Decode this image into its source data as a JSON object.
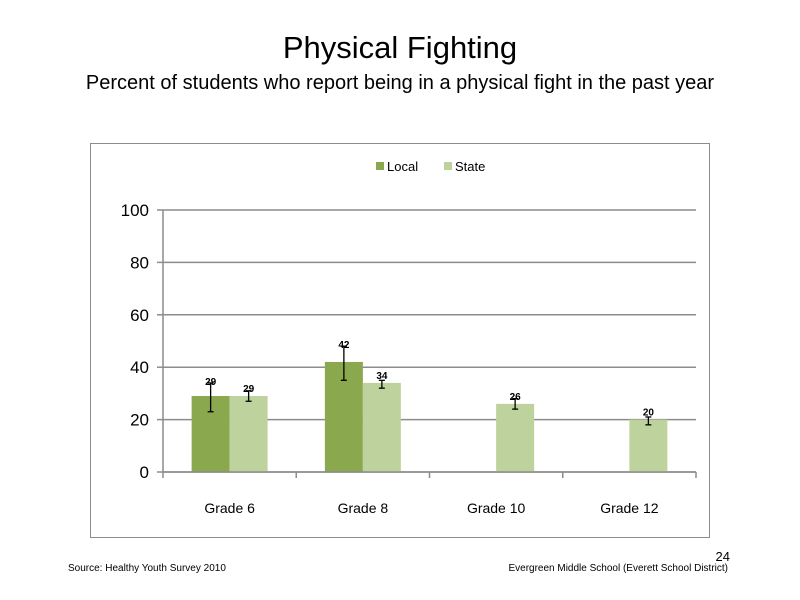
{
  "slide": {
    "title": "Physical Fighting",
    "subtitle": "Percent of students who report being in a physical fight in the past year",
    "source": "Source: Healthy Youth Survey 2010",
    "school": "Evergreen Middle  School (Everett School District)",
    "page_number": "24"
  },
  "colors": {
    "local": "#8aa84e",
    "state": "#bdd29c",
    "grid": "#8c8c8c"
  },
  "chart_data": {
    "type": "bar",
    "title": "",
    "xlabel": "",
    "ylabel": "",
    "categories": [
      "Grade 6",
      "Grade 8",
      "Grade 10",
      "Grade 12"
    ],
    "ylim": [
      0,
      100
    ],
    "yticks": [
      0,
      20,
      40,
      60,
      80,
      100
    ],
    "grid": true,
    "legend_position": "top",
    "series": [
      {
        "name": "Local",
        "values": [
          29,
          42,
          null,
          null
        ],
        "labels": [
          "29",
          "42",
          "",
          ""
        ],
        "error_low": [
          23,
          35,
          null,
          null
        ],
        "error_high": [
          34,
          48,
          null,
          null
        ]
      },
      {
        "name": "State",
        "values": [
          29,
          34,
          26,
          20
        ],
        "labels": [
          "29",
          "34",
          "26",
          "20"
        ],
        "error_low": [
          27,
          32,
          24,
          18
        ],
        "error_high": [
          31,
          35,
          28,
          21
        ]
      }
    ]
  }
}
